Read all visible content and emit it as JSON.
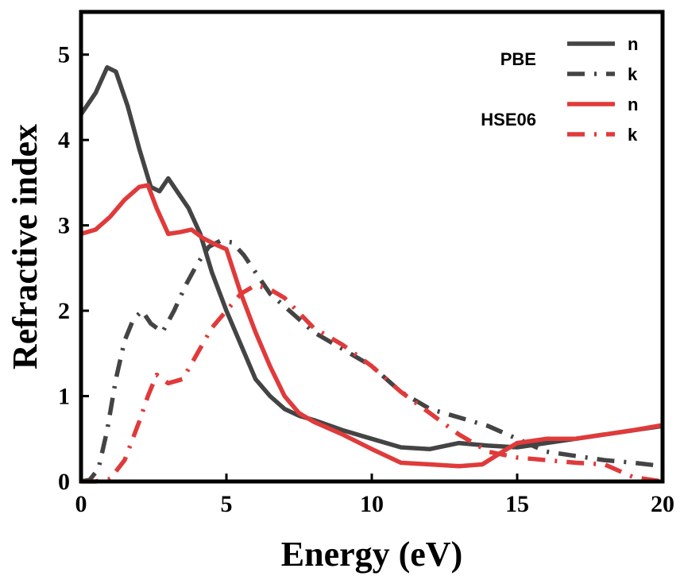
{
  "chart_data": {
    "type": "line",
    "title": "",
    "xlabel": "Energy (eV)",
    "ylabel": "Refractive index",
    "xlim": [
      0,
      20
    ],
    "ylim": [
      0,
      5.5
    ],
    "xticks": [
      0,
      5,
      10,
      15,
      20
    ],
    "yticks": [
      0,
      1,
      2,
      3,
      4,
      5
    ],
    "grid": false,
    "legend_position": "top-right",
    "legend_groups": [
      {
        "label": "PBE",
        "entries": [
          "n",
          "k"
        ]
      },
      {
        "label": "HSE06",
        "entries": [
          "n",
          "k"
        ]
      }
    ],
    "series": [
      {
        "name": "n",
        "group": "PBE",
        "color": "#444444",
        "style": "solid",
        "x": [
          0,
          0.5,
          0.9,
          1.2,
          1.6,
          2.0,
          2.4,
          2.7,
          3.0,
          3.3,
          3.7,
          4.1,
          4.5,
          5.0,
          5.5,
          6.0,
          6.5,
          7.0,
          7.5,
          8.0,
          9.0,
          10.0,
          11.0,
          12.0,
          13.0,
          14.0,
          15.0,
          16.0,
          17.0,
          18.0,
          19.0,
          20.0
        ],
        "y": [
          4.3,
          4.55,
          4.85,
          4.8,
          4.4,
          3.9,
          3.45,
          3.4,
          3.55,
          3.4,
          3.2,
          2.9,
          2.45,
          2.0,
          1.6,
          1.2,
          1.0,
          0.85,
          0.77,
          0.72,
          0.6,
          0.5,
          0.4,
          0.38,
          0.45,
          0.42,
          0.4,
          0.45,
          0.5,
          0.55,
          0.6,
          0.65
        ]
      },
      {
        "name": "k",
        "group": "PBE",
        "color": "#444444",
        "style": "dashdot",
        "x": [
          0,
          0.3,
          0.6,
          0.9,
          1.2,
          1.5,
          1.8,
          2.1,
          2.4,
          2.8,
          3.2,
          3.6,
          4.0,
          4.4,
          4.8,
          5.2,
          5.6,
          6.0,
          6.5,
          7.0,
          7.5,
          8.0,
          9.0,
          10.0,
          11.0,
          12.0,
          13.0,
          14.0,
          15.0,
          16.0,
          17.0,
          18.0,
          19.0,
          20.0
        ],
        "y": [
          0.0,
          0.02,
          0.15,
          0.6,
          1.2,
          1.65,
          1.9,
          2.0,
          1.85,
          1.75,
          2.0,
          2.3,
          2.55,
          2.75,
          2.82,
          2.8,
          2.65,
          2.45,
          2.2,
          2.05,
          1.9,
          1.75,
          1.55,
          1.35,
          1.05,
          0.85,
          0.75,
          0.65,
          0.5,
          0.35,
          0.3,
          0.25,
          0.22,
          0.18
        ]
      },
      {
        "name": "n",
        "group": "HSE06",
        "color": "#e03a3a",
        "style": "solid",
        "x": [
          0,
          0.5,
          1.0,
          1.5,
          2.0,
          2.3,
          2.6,
          3.0,
          3.4,
          3.8,
          4.2,
          4.6,
          5.0,
          5.5,
          6.0,
          6.5,
          7.0,
          7.5,
          8.0,
          9.0,
          10.0,
          11.0,
          12.0,
          13.0,
          13.8,
          14.5,
          15.0,
          16.0,
          17.0,
          18.0,
          19.0,
          20.0
        ],
        "y": [
          2.9,
          2.95,
          3.1,
          3.3,
          3.45,
          3.47,
          3.2,
          2.9,
          2.92,
          2.95,
          2.85,
          2.78,
          2.72,
          2.2,
          1.75,
          1.35,
          1.0,
          0.8,
          0.7,
          0.55,
          0.38,
          0.22,
          0.2,
          0.18,
          0.2,
          0.35,
          0.45,
          0.5,
          0.5,
          0.55,
          0.6,
          0.66
        ]
      },
      {
        "name": "k",
        "group": "HSE06",
        "color": "#e03a3a",
        "style": "dashdot",
        "x": [
          0,
          0.5,
          1.0,
          1.5,
          2.0,
          2.3,
          2.6,
          3.0,
          3.5,
          4.0,
          4.5,
          5.0,
          5.5,
          6.0,
          6.5,
          7.0,
          8.0,
          9.0,
          10.0,
          11.0,
          12.0,
          13.0,
          14.0,
          15.0,
          16.0,
          17.0,
          18.0,
          19.0,
          20.0
        ],
        "y": [
          0.0,
          0.0,
          0.03,
          0.25,
          0.7,
          1.0,
          1.25,
          1.15,
          1.2,
          1.5,
          1.8,
          2.0,
          2.2,
          2.3,
          2.25,
          2.15,
          1.8,
          1.6,
          1.35,
          1.05,
          0.8,
          0.55,
          0.35,
          0.28,
          0.25,
          0.22,
          0.2,
          0.05,
          0.0
        ]
      }
    ]
  }
}
